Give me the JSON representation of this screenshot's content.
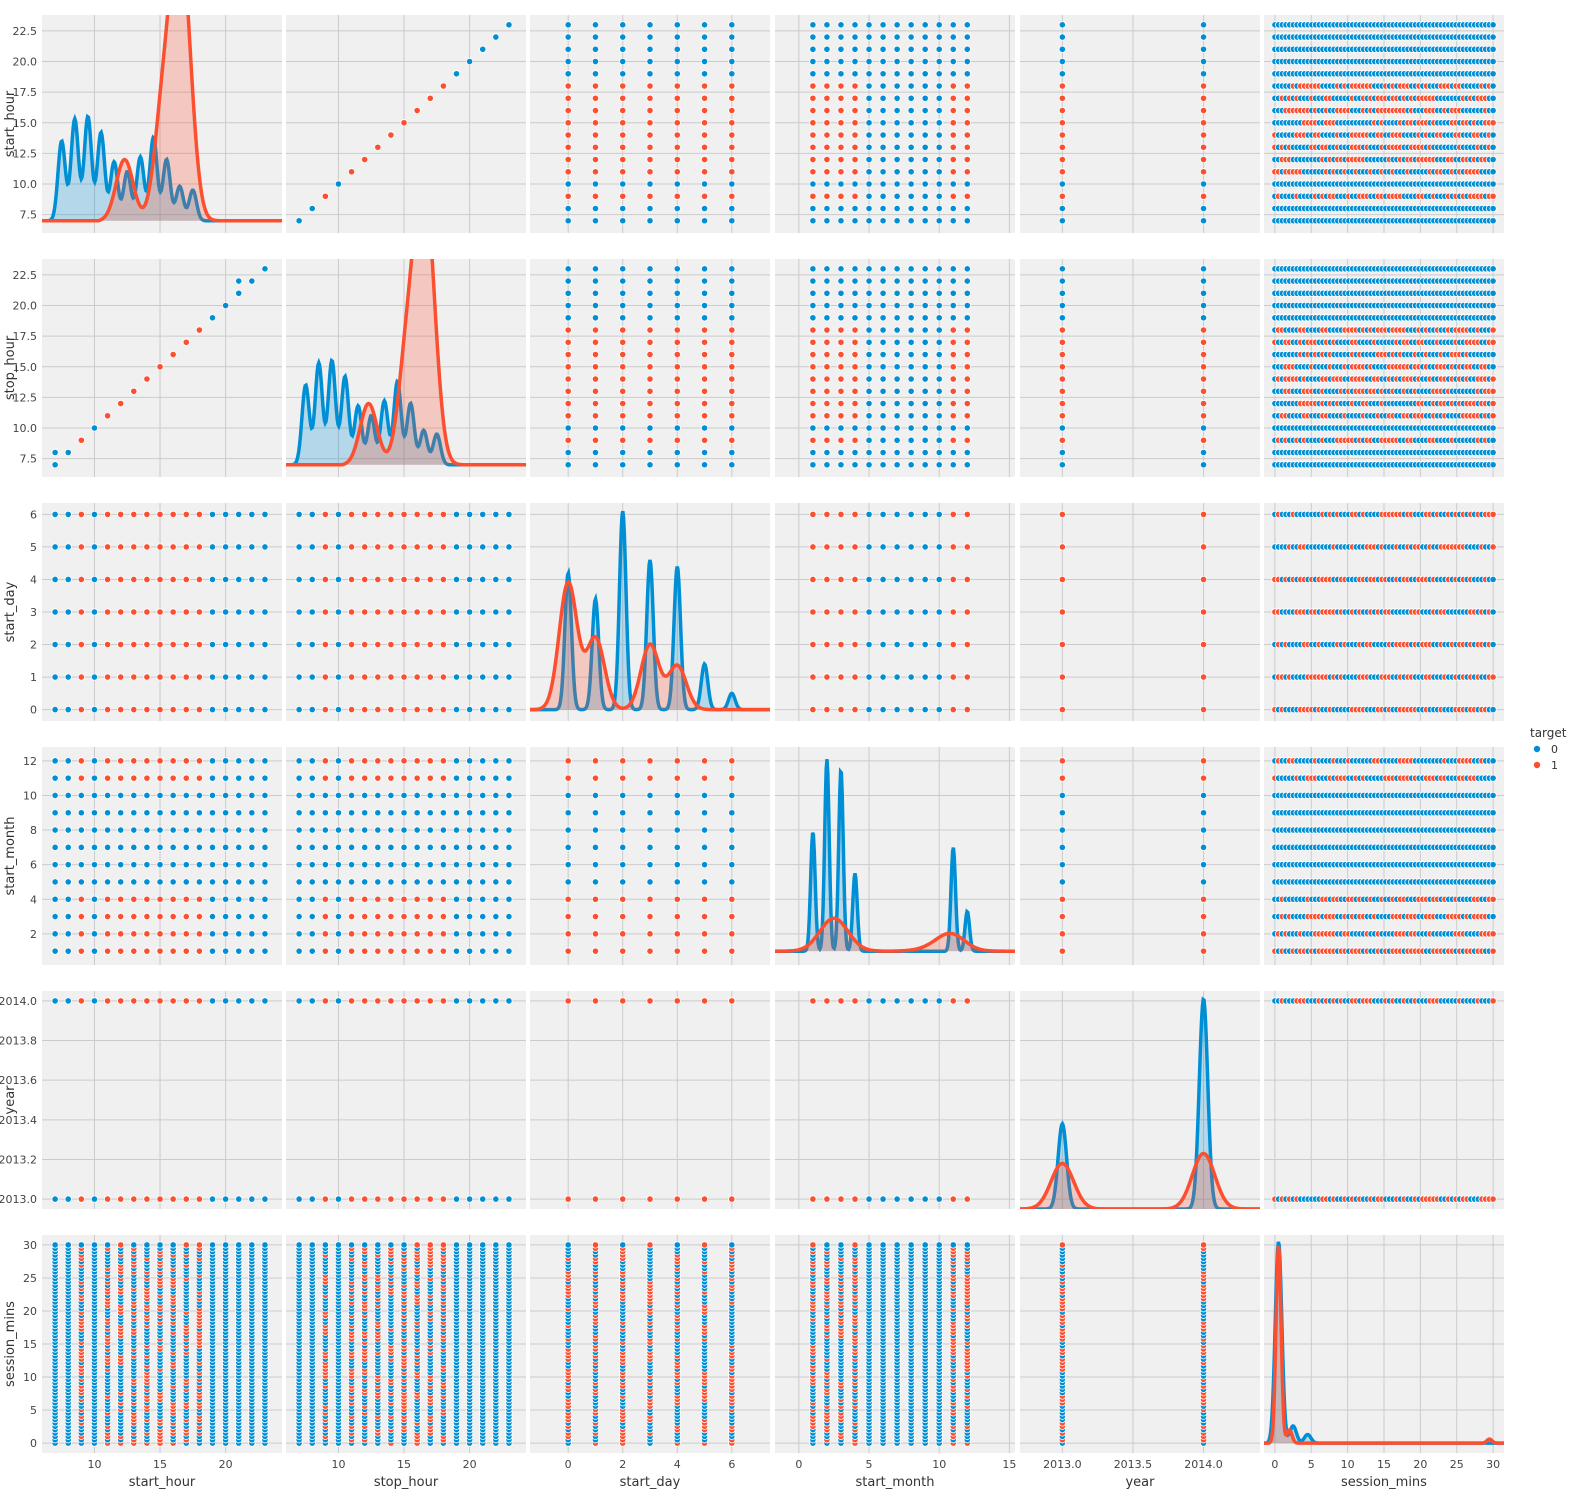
{
  "chart_data": {
    "type": "scatter",
    "kind": "pairplot",
    "diagonal": "kde",
    "grid": true,
    "legend": {
      "title": "target",
      "placement": "right",
      "entries": [
        {
          "label": "0",
          "color": "#008fd5"
        },
        {
          "label": "1",
          "color": "#fc4f30"
        }
      ]
    },
    "variables": [
      {
        "name": "start_hour",
        "lim": [
          6.0,
          24.3
        ],
        "ticks": [
          10,
          15,
          20
        ],
        "tick_labels": [
          "10",
          "15",
          "20"
        ],
        "values": [
          7,
          8,
          9,
          10,
          11,
          12,
          13,
          14,
          15,
          16,
          17,
          18,
          19,
          20,
          21,
          22,
          23
        ],
        "target1_values": [
          9,
          11,
          12,
          13,
          14,
          15,
          16,
          17,
          18
        ]
      },
      {
        "name": "stop_hour",
        "lim": [
          6.0,
          24.3
        ],
        "ticks": [
          10,
          15,
          20
        ],
        "tick_labels": [
          "10",
          "15",
          "20"
        ],
        "values": [
          7,
          8,
          9,
          10,
          11,
          12,
          13,
          14,
          15,
          16,
          17,
          18,
          19,
          20,
          21,
          22,
          23
        ],
        "target1_values": [
          9,
          11,
          12,
          13,
          14,
          15,
          16,
          17,
          18
        ]
      },
      {
        "name": "start_day",
        "lim": [
          -1.4,
          7.4
        ],
        "ticks": [
          0,
          2,
          4,
          6
        ],
        "tick_labels": [
          "0",
          "2",
          "4",
          "6"
        ],
        "values": [
          0,
          1,
          2,
          3,
          4,
          5,
          6
        ],
        "target1_values": [
          0,
          1,
          2,
          3,
          4,
          5,
          6
        ]
      },
      {
        "name": "start_month",
        "lim": [
          -1.7,
          15.4
        ],
        "ticks": [
          0,
          5,
          10,
          15
        ],
        "tick_labels": [
          "0",
          "5",
          "10",
          "15"
        ],
        "values": [
          1,
          2,
          3,
          4,
          5,
          6,
          7,
          8,
          9,
          10,
          11,
          12
        ],
        "target1_values": [
          1,
          2,
          3,
          4,
          11,
          12
        ]
      },
      {
        "name": "year",
        "lim": [
          2012.7,
          2014.4
        ],
        "ticks": [
          2013.0,
          2013.5,
          2014.0
        ],
        "tick_labels": [
          "2013.0",
          "2013.5",
          "2014.0"
        ],
        "yticks": [
          2013.0,
          2013.2,
          2013.4,
          2013.6,
          2013.8,
          2014.0
        ],
        "ytick_labels": [
          "2013.0",
          "2013.2",
          "2013.4",
          "2013.6",
          "2013.8",
          "2014.0"
        ],
        "values": [
          2013,
          2014
        ],
        "target1_values": [
          2013,
          2014
        ]
      },
      {
        "name": "session_mins",
        "lim": [
          -1.5,
          31.5
        ],
        "ticks": [
          0,
          5,
          10,
          15,
          20,
          25,
          30
        ],
        "tick_labels": [
          "0",
          "5",
          "10",
          "15",
          "20",
          "25",
          "30"
        ],
        "range": [
          0,
          30
        ]
      }
    ],
    "diagonal_yticks": [
      {
        "ticks": [
          7.5,
          10.0,
          12.5,
          15.0,
          17.5,
          20.0,
          22.5
        ],
        "labels": [
          "7.5",
          "10.0",
          "12.5",
          "15.0",
          "17.5",
          "20.0",
          "22.5"
        ]
      }
    ],
    "axis_yticks": [
      {
        "ticks": [
          7.5,
          10.0,
          12.5,
          15.0,
          17.5,
          20.0,
          22.5
        ],
        "labels": [
          "7.5",
          "10.0",
          "12.5",
          "15.0",
          "17.5",
          "20.0",
          "22.5"
        ]
      },
      {
        "ticks": [
          7.5,
          10.0,
          12.5,
          15.0,
          17.5,
          20.0,
          22.5
        ],
        "labels": [
          "7.5",
          "10.0",
          "12.5",
          "15.0",
          "17.5",
          "20.0",
          "22.5"
        ]
      },
      {
        "ticks": [
          0,
          1,
          2,
          3,
          4,
          5,
          6
        ],
        "labels": [
          "0",
          "1",
          "2",
          "3",
          "4",
          "5",
          "6"
        ]
      },
      {
        "ticks": [
          2,
          4,
          6,
          8,
          10,
          12
        ],
        "labels": [
          "2",
          "4",
          "6",
          "8",
          "10",
          "12"
        ]
      },
      {
        "ticks": [
          2013.0,
          2013.2,
          2013.4,
          2013.6,
          2013.8,
          2014.0
        ],
        "labels": [
          "2013.0",
          "2013.2",
          "2013.4",
          "2013.6",
          "2013.8",
          "2014.0"
        ]
      },
      {
        "ticks": [
          0,
          5,
          10,
          15,
          20,
          25,
          30
        ],
        "labels": [
          "0",
          "5",
          "10",
          "15",
          "20",
          "25",
          "30"
        ]
      }
    ],
    "kde": {
      "start_hour": {
        "t0": {
          "peaks": [
            [
              7.5,
              13.5
            ],
            [
              8.5,
              15.3
            ],
            [
              9.5,
              15.5
            ],
            [
              10.5,
              14.2
            ],
            [
              11.5,
              11.8
            ],
            [
              12.5,
              11.0
            ],
            [
              13.5,
              12.2
            ],
            [
              14.5,
              13.8
            ],
            [
              15.5,
              12.0
            ],
            [
              16.5,
              9.8
            ],
            [
              17.5,
              9.5
            ],
            [
              18.5,
              7.0
            ],
            [
              19.5,
              6.3
            ],
            [
              21.5,
              6.4
            ],
            [
              22.5,
              6.3
            ]
          ],
          "width": 0.28
        },
        "t1": {
          "peaks": [
            [
              9.0,
              6.7
            ],
            [
              12.3,
              12.0
            ],
            [
              15.2,
              15.5
            ],
            [
              16.3,
              23.2
            ],
            [
              17.0,
              17.0
            ]
          ],
          "width": 0.65
        }
      },
      "start_day": {
        "t0": {
          "peaks": [
            [
              0,
              4.2
            ],
            [
              1,
              3.4
            ],
            [
              2,
              6.1
            ],
            [
              3,
              4.6
            ],
            [
              4,
              4.4
            ],
            [
              5,
              1.4
            ],
            [
              6,
              0.5
            ]
          ],
          "width": 0.12
        },
        "t1": {
          "peaks": [
            [
              0,
              3.9
            ],
            [
              1,
              2.2
            ],
            [
              3,
              2.0
            ],
            [
              4,
              1.35
            ]
          ],
          "width": 0.33
        }
      },
      "start_month": {
        "t0": {
          "peaks": [
            [
              1,
              7.9
            ],
            [
              2,
              12.1
            ],
            [
              3,
              11.5
            ],
            [
              4,
              5.5
            ],
            [
              9,
              0.6
            ],
            [
              10,
              0.5
            ],
            [
              11,
              7.0
            ],
            [
              12,
              3.3
            ]
          ],
          "width": 0.16
        },
        "t1": {
          "peaks": [
            [
              2.5,
              2.9
            ],
            [
              10.8,
              2.0
            ],
            [
              9.2,
              1.1
            ]
          ],
          "width": 1.0
        }
      },
      "year": {
        "t0": {
          "peaks": [
            [
              2013.0,
              2013.38
            ],
            [
              2014.0,
              2014.01
            ]
          ],
          "width": 0.03
        },
        "t1": {
          "peaks": [
            [
              2013.0,
              2013.18
            ],
            [
              2014.0,
              2013.23
            ]
          ],
          "width": 0.08
        }
      },
      "session_mins": {
        "t0": {
          "peaks": [
            [
              0.5,
              30.5
            ],
            [
              2.5,
              2.6
            ],
            [
              4.5,
              1.3
            ]
          ],
          "width": 0.45
        },
        "t1": {
          "peaks": [
            [
              0.5,
              29.9
            ],
            [
              2.0,
              2.0
            ],
            [
              29.5,
              0.6
            ]
          ],
          "width": 0.35
        }
      }
    }
  }
}
